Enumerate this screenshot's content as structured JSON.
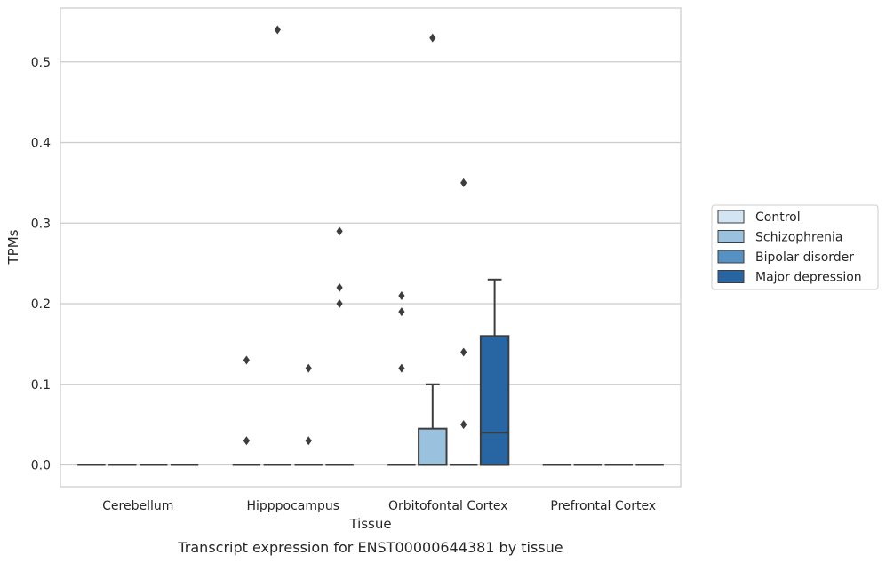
{
  "chart_data": {
    "type": "box",
    "title": "",
    "caption": "Transcript expression for ENST00000644381 by tissue",
    "xlabel": "Tissue",
    "ylabel": "TPMs",
    "ylim": [
      -0.027,
      0.567
    ],
    "yticks": [
      0.0,
      0.1,
      0.2,
      0.3,
      0.4,
      0.5
    ],
    "ytick_labels": [
      "0.0",
      "0.1",
      "0.2",
      "0.3",
      "0.4",
      "0.5"
    ],
    "grid": "horizontal",
    "legend_position": "right",
    "categories": [
      "Cerebellum",
      "Hipppocampus",
      "Orbitofontal Cortex",
      "Prefrontal Cortex"
    ],
    "series": [
      {
        "name": "Control",
        "color": "#d3e4f3",
        "boxes": [
          {
            "category": "Cerebellum",
            "q1": 0,
            "median": 0,
            "q3": 0,
            "whisker_low": 0,
            "whisker_high": 0,
            "outliers": []
          },
          {
            "category": "Hipppocampus",
            "q1": 0,
            "median": 0,
            "q3": 0,
            "whisker_low": 0,
            "whisker_high": 0,
            "outliers": [
              0.03,
              0.13
            ]
          },
          {
            "category": "Orbitofontal Cortex",
            "q1": 0,
            "median": 0,
            "q3": 0,
            "whisker_low": 0,
            "whisker_high": 0,
            "outliers": [
              0.12,
              0.19,
              0.21
            ]
          },
          {
            "category": "Prefrontal Cortex",
            "q1": 0,
            "median": 0,
            "q3": 0,
            "whisker_low": 0,
            "whisker_high": 0,
            "outliers": []
          }
        ]
      },
      {
        "name": "Schizophrenia",
        "color": "#9ac2de",
        "boxes": [
          {
            "category": "Cerebellum",
            "q1": 0,
            "median": 0,
            "q3": 0,
            "whisker_low": 0,
            "whisker_high": 0,
            "outliers": []
          },
          {
            "category": "Hipppocampus",
            "q1": 0,
            "median": 0,
            "q3": 0,
            "whisker_low": 0,
            "whisker_high": 0,
            "outliers": [
              0.54
            ]
          },
          {
            "category": "Orbitofontal Cortex",
            "q1": 0,
            "median": 0,
            "q3": 0.045,
            "whisker_low": 0,
            "whisker_high": 0.1,
            "outliers": [
              0.53
            ]
          },
          {
            "category": "Prefrontal Cortex",
            "q1": 0,
            "median": 0,
            "q3": 0,
            "whisker_low": 0,
            "whisker_high": 0,
            "outliers": []
          }
        ]
      },
      {
        "name": "Bipolar disorder",
        "color": "#5592c3",
        "boxes": [
          {
            "category": "Cerebellum",
            "q1": 0,
            "median": 0,
            "q3": 0,
            "whisker_low": 0,
            "whisker_high": 0,
            "outliers": []
          },
          {
            "category": "Hipppocampus",
            "q1": 0,
            "median": 0,
            "q3": 0,
            "whisker_low": 0,
            "whisker_high": 0,
            "outliers": [
              0.03,
              0.12
            ]
          },
          {
            "category": "Orbitofontal Cortex",
            "q1": 0,
            "median": 0,
            "q3": 0,
            "whisker_low": 0,
            "whisker_high": 0,
            "outliers": [
              0.05,
              0.14,
              0.35
            ]
          },
          {
            "category": "Prefrontal Cortex",
            "q1": 0,
            "median": 0,
            "q3": 0,
            "whisker_low": 0,
            "whisker_high": 0,
            "outliers": []
          }
        ]
      },
      {
        "name": "Major depression",
        "color": "#2866a3",
        "boxes": [
          {
            "category": "Cerebellum",
            "q1": 0,
            "median": 0,
            "q3": 0,
            "whisker_low": 0,
            "whisker_high": 0,
            "outliers": []
          },
          {
            "category": "Hipppocampus",
            "q1": 0,
            "median": 0,
            "q3": 0,
            "whisker_low": 0,
            "whisker_high": 0,
            "outliers": [
              0.2,
              0.22,
              0.29
            ]
          },
          {
            "category": "Orbitofontal Cortex",
            "q1": 0,
            "median": 0.04,
            "q3": 0.16,
            "whisker_low": 0,
            "whisker_high": 0.23,
            "outliers": []
          },
          {
            "category": "Prefrontal Cortex",
            "q1": 0,
            "median": 0,
            "q3": 0,
            "whisker_low": 0,
            "whisker_high": 0,
            "outliers": []
          }
        ]
      }
    ]
  }
}
